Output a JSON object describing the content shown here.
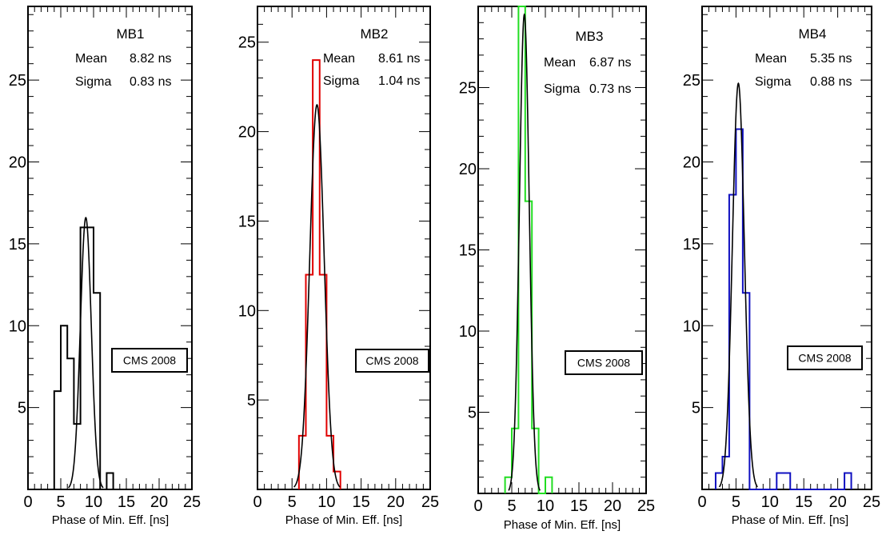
{
  "chart_data": [
    {
      "type": "histogram",
      "title": "MB1",
      "xlabel": "Phase of Min. Eff. [ns]",
      "xlim": [
        0,
        25
      ],
      "ylim": [
        0,
        29.5
      ],
      "xticks": [
        "0",
        "5",
        "10",
        "15",
        "20",
        "25"
      ],
      "yticks": [
        "5",
        "10",
        "15",
        "20",
        "25"
      ],
      "stats": [
        {
          "label": "Mean",
          "value": "8.82 ns"
        },
        {
          "label": "Sigma",
          "value": "0.83 ns"
        }
      ],
      "annotation": "CMS 2008",
      "histogram_color": "#000000",
      "bin_width": 1,
      "bins": [
        {
          "x": 4,
          "count": 6
        },
        {
          "x": 5,
          "count": 10
        },
        {
          "x": 6,
          "count": 8
        },
        {
          "x": 7,
          "count": 4
        },
        {
          "x": 8,
          "count": 16
        },
        {
          "x": 9,
          "count": 16
        },
        {
          "x": 10,
          "count": 12
        },
        {
          "x": 11,
          "count": 0
        },
        {
          "x": 12,
          "count": 1
        }
      ],
      "fit": {
        "type": "gaussian",
        "color": "#000000",
        "mean": 8.82,
        "sigma": 0.83,
        "peak": 16.6
      }
    },
    {
      "type": "histogram",
      "title": "MB2",
      "xlabel": "Phase of Min. Eff. [ns]",
      "xlim": [
        0,
        25
      ],
      "ylim": [
        0,
        27
      ],
      "xticks": [
        "0",
        "5",
        "10",
        "15",
        "20",
        "25"
      ],
      "yticks": [
        "5",
        "10",
        "15",
        "20",
        "25"
      ],
      "stats": [
        {
          "label": "Mean",
          "value": "8.61 ns"
        },
        {
          "label": "Sigma",
          "value": "1.04 ns"
        }
      ],
      "annotation": "CMS 2008",
      "histogram_color": "#e00000",
      "bin_width": 1,
      "bins": [
        {
          "x": 6,
          "count": 3
        },
        {
          "x": 7,
          "count": 12
        },
        {
          "x": 8,
          "count": 24
        },
        {
          "x": 9,
          "count": 12
        },
        {
          "x": 10,
          "count": 3
        },
        {
          "x": 11,
          "count": 1
        }
      ],
      "fit": {
        "type": "gaussian",
        "color": "#000000",
        "mean": 8.61,
        "sigma": 1.04,
        "peak": 21.5
      }
    },
    {
      "type": "histogram",
      "title": "MB3",
      "xlabel": "Phase of Min. Eff. [ns]",
      "xlim": [
        0,
        25
      ],
      "ylim": [
        0,
        30
      ],
      "xticks": [
        "0",
        "5",
        "10",
        "15",
        "20",
        "25"
      ],
      "yticks": [
        "5",
        "10",
        "15",
        "20",
        "25"
      ],
      "stats": [
        {
          "label": "Mean",
          "value": "6.87 ns"
        },
        {
          "label": "Sigma",
          "value": "0.73 ns"
        }
      ],
      "annotation": "CMS 2008",
      "histogram_color": "#22dd22",
      "bin_width": 1,
      "bins": [
        {
          "x": 4,
          "count": 1
        },
        {
          "x": 5,
          "count": 4
        },
        {
          "x": 6,
          "count": 30
        },
        {
          "x": 7,
          "count": 18
        },
        {
          "x": 8,
          "count": 4
        },
        {
          "x": 9,
          "count": 0
        },
        {
          "x": 10,
          "count": 1
        }
      ],
      "fit": {
        "type": "gaussian",
        "color": "#000000",
        "mean": 6.87,
        "sigma": 0.73,
        "peak": 29.5
      }
    },
    {
      "type": "histogram",
      "title": "MB4",
      "xlabel": "Phase of Min. Eff. [ns]",
      "xlim": [
        0,
        25
      ],
      "ylim": [
        0,
        29.5
      ],
      "xticks": [
        "0",
        "5",
        "10",
        "15",
        "20",
        "25"
      ],
      "yticks": [
        "5",
        "10",
        "15",
        "20",
        "25"
      ],
      "stats": [
        {
          "label": "Mean",
          "value": "5.35 ns"
        },
        {
          "label": "Sigma",
          "value": "0.88 ns"
        }
      ],
      "annotation": "CMS 2008",
      "histogram_color": "#1010c0",
      "bin_width": 1,
      "bins": [
        {
          "x": 2,
          "count": 1
        },
        {
          "x": 3,
          "count": 2
        },
        {
          "x": 4,
          "count": 18
        },
        {
          "x": 5,
          "count": 22
        },
        {
          "x": 6,
          "count": 12
        },
        {
          "x": 7,
          "count": 0
        },
        {
          "x": 8,
          "count": 0
        },
        {
          "x": 9,
          "count": 0
        },
        {
          "x": 10,
          "count": 0
        },
        {
          "x": 11,
          "count": 1
        },
        {
          "x": 12,
          "count": 1
        },
        {
          "x": 13,
          "count": 0
        },
        {
          "x": 14,
          "count": 0
        },
        {
          "x": 15,
          "count": 0
        },
        {
          "x": 16,
          "count": 0
        },
        {
          "x": 17,
          "count": 0
        },
        {
          "x": 18,
          "count": 0
        },
        {
          "x": 19,
          "count": 0
        },
        {
          "x": 20,
          "count": 0
        },
        {
          "x": 21,
          "count": 1
        }
      ],
      "fit": {
        "type": "gaussian",
        "color": "#000000",
        "mean": 5.35,
        "sigma": 0.88,
        "peak": 24.8
      }
    }
  ]
}
